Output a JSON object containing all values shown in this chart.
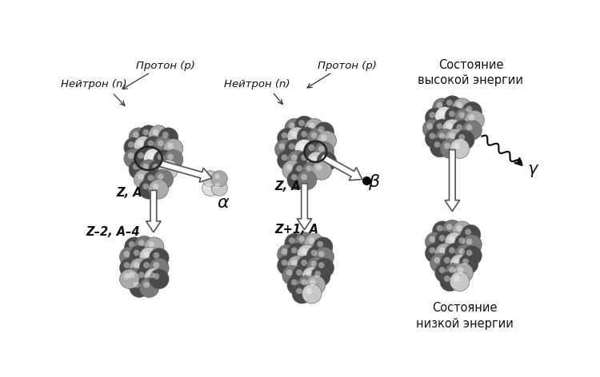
{
  "background_color": "#ffffff",
  "labels": {
    "proton_label_1": "Протон (p)",
    "neutron_label_1": "Нейтрон (n)",
    "proton_label_2": "Протон (p)",
    "neutron_label_2": "Нейтрон (n)",
    "za_label_1": "Z, A",
    "za_minus_label": "Z–2, A–4",
    "alpha_label": "α",
    "za_label_2": "Z, A",
    "z1a_label": "Z+1, A",
    "beta_label": "β",
    "high_energy": "Состояние\nвысокой энергии",
    "low_energy": "Состояние\nнизкой энергии",
    "gamma_label": "γ"
  },
  "fig_width": 7.5,
  "fig_height": 4.72,
  "dpi": 100
}
